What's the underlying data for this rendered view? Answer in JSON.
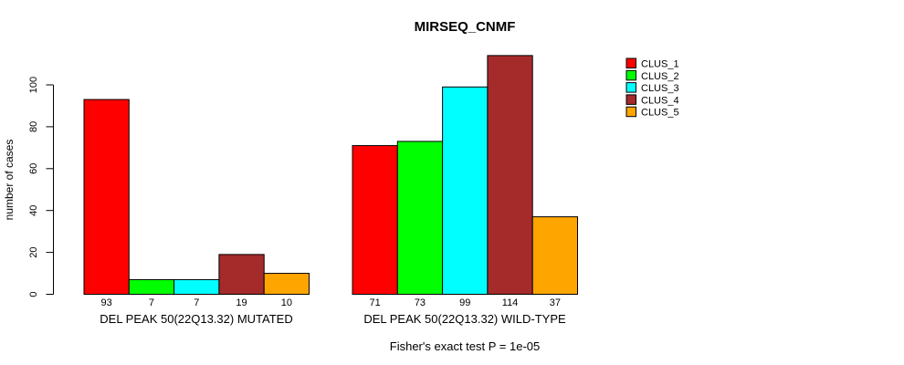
{
  "chart_data": {
    "type": "bar",
    "title": "MIRSEQ_CNMF",
    "ylabel": "number of cases",
    "xlabel": "",
    "ylim": [
      0,
      115
    ],
    "yticks": [
      0,
      20,
      40,
      60,
      80,
      100
    ],
    "grid": false,
    "categories": [
      "DEL PEAK 50(22Q13.32) MUTATED",
      "DEL PEAK 50(22Q13.32) WILD-TYPE"
    ],
    "series": [
      {
        "name": "CLUS_1",
        "color": "#FF0000",
        "values": [
          93,
          71
        ]
      },
      {
        "name": "CLUS_2",
        "color": "#00FF00",
        "values": [
          7,
          73
        ]
      },
      {
        "name": "CLUS_3",
        "color": "#00FFFF",
        "values": [
          7,
          99
        ]
      },
      {
        "name": "CLUS_4",
        "color": "#A52A2A",
        "values": [
          19,
          114
        ]
      },
      {
        "name": "CLUS_5",
        "color": "#FFA500",
        "values": [
          10,
          37
        ]
      }
    ],
    "bar_value_labels": {
      "DEL PEAK 50(22Q13.32) MUTATED": [
        93,
        7,
        7,
        19,
        10
      ],
      "DEL PEAK 50(22Q13.32) WILD-TYPE": [
        71,
        73,
        99,
        114,
        37
      ]
    },
    "legend": {
      "position": "top-right",
      "entries": [
        "CLUS_1",
        "CLUS_2",
        "CLUS_3",
        "CLUS_4",
        "CLUS_5"
      ]
    },
    "annotation": "Fisher's exact test P = 1e-05",
    "text_color": "#000000",
    "axis_color": "#000000"
  }
}
